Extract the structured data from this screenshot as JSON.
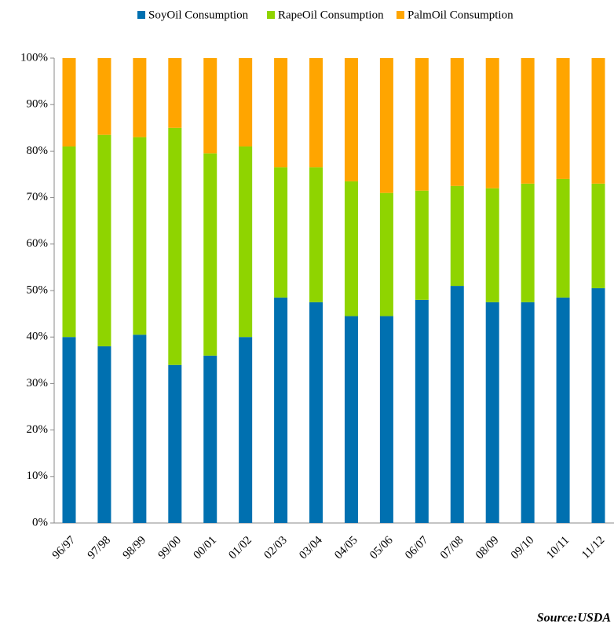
{
  "chart_data": {
    "type": "stacked_bar_100",
    "categories": [
      "96/97",
      "97/98",
      "98/99",
      "99/00",
      "00/01",
      "01/02",
      "02/03",
      "03/04",
      "04/05",
      "05/06",
      "06/07",
      "07/08",
      "08/09",
      "09/10",
      "10/11",
      "11/12"
    ],
    "series": [
      {
        "name": "SoyOil Consumption",
        "color": "#0070b0",
        "values": [
          40,
          38,
          40.5,
          34,
          36,
          40,
          48.5,
          47.5,
          44.5,
          44.5,
          48,
          51,
          47.5,
          47.5,
          48.5,
          50.5
        ]
      },
      {
        "name": "RapeOil Consumption",
        "color": "#8fd400",
        "values": [
          41,
          45.5,
          42.5,
          51,
          43.5,
          41,
          28,
          29,
          29,
          26.5,
          23.5,
          21.5,
          24.5,
          25.5,
          25.5,
          22.5
        ]
      },
      {
        "name": "PalmOil Consumption",
        "color": "#ffa500",
        "values": [
          19,
          16.5,
          17,
          15,
          20.5,
          19,
          23.5,
          23.5,
          26.5,
          29,
          28.5,
          27.5,
          28,
          27,
          26,
          27
        ]
      }
    ],
    "ylim": [
      0,
      100
    ],
    "yticks": [
      {
        "value": 0,
        "label": "0%"
      },
      {
        "value": 10,
        "label": "10%"
      },
      {
        "value": 20,
        "label": "20%"
      },
      {
        "value": 30,
        "label": "30%"
      },
      {
        "value": 40,
        "label": "40%"
      },
      {
        "value": 50,
        "label": "50%"
      },
      {
        "value": 60,
        "label": "60%"
      },
      {
        "value": 70,
        "label": "70%"
      },
      {
        "value": 80,
        "label": "80%"
      },
      {
        "value": 90,
        "label": "90%"
      },
      {
        "value": 100,
        "label": "100%"
      }
    ],
    "legend": "top",
    "source": "Source:USDA"
  }
}
